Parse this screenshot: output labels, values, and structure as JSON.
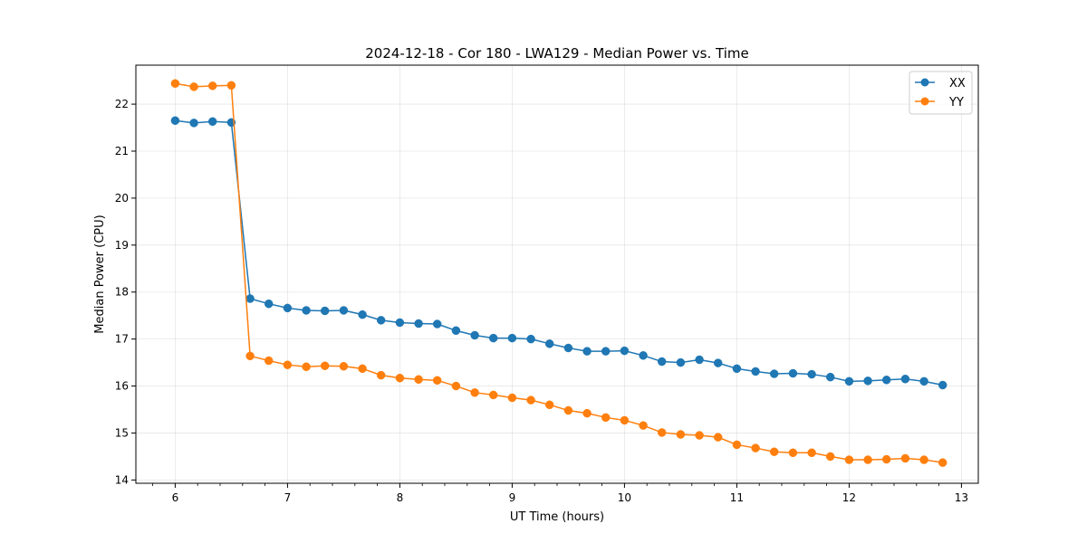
{
  "chart_data": {
    "type": "line",
    "title": "2024-12-18 - Cor 180 - LWA129 - Median Power vs. Time",
    "xlabel": "UT Time (hours)",
    "ylabel": "Median Power (CPU)",
    "xlim": [
      5.65,
      13.15
    ],
    "ylim": [
      13.93,
      22.83
    ],
    "xticks": [
      6,
      7,
      8,
      9,
      10,
      11,
      12,
      13
    ],
    "yticks": [
      14,
      15,
      16,
      17,
      18,
      19,
      20,
      21,
      22
    ],
    "grid": true,
    "legend_position": "top-right",
    "x": [
      6.0,
      6.167,
      6.333,
      6.5,
      6.667,
      6.833,
      7.0,
      7.167,
      7.333,
      7.5,
      7.667,
      7.833,
      8.0,
      8.167,
      8.333,
      8.5,
      8.667,
      8.833,
      9.0,
      9.167,
      9.333,
      9.5,
      9.667,
      9.833,
      10.0,
      10.167,
      10.333,
      10.5,
      10.667,
      10.833,
      11.0,
      11.167,
      11.333,
      11.5,
      11.667,
      11.833,
      12.0,
      12.167,
      12.333,
      12.5,
      12.667,
      12.833
    ],
    "series": [
      {
        "name": "XX",
        "color": "#1f77b4",
        "values": [
          21.65,
          21.6,
          21.63,
          21.61,
          17.86,
          17.75,
          17.66,
          17.61,
          17.6,
          17.61,
          17.52,
          17.4,
          17.35,
          17.33,
          17.32,
          17.18,
          17.08,
          17.02,
          17.02,
          17.0,
          16.9,
          16.81,
          16.74,
          16.74,
          16.75,
          16.65,
          16.52,
          16.5,
          16.56,
          16.49,
          16.37,
          16.31,
          16.26,
          16.27,
          16.25,
          16.19,
          16.1,
          16.11,
          16.13,
          16.15,
          16.1,
          16.02
        ]
      },
      {
        "name": "YY",
        "color": "#ff7f0e",
        "values": [
          22.44,
          22.37,
          22.39,
          22.4,
          16.64,
          16.54,
          16.45,
          16.41,
          16.43,
          16.42,
          16.37,
          16.23,
          16.17,
          16.14,
          16.12,
          16.0,
          15.86,
          15.81,
          15.75,
          15.7,
          15.6,
          15.48,
          15.42,
          15.33,
          15.27,
          15.16,
          15.01,
          14.97,
          14.95,
          14.91,
          14.75,
          14.68,
          14.6,
          14.58,
          14.58,
          14.5,
          14.43,
          14.43,
          14.44,
          14.46,
          14.43,
          14.37
        ]
      }
    ]
  }
}
